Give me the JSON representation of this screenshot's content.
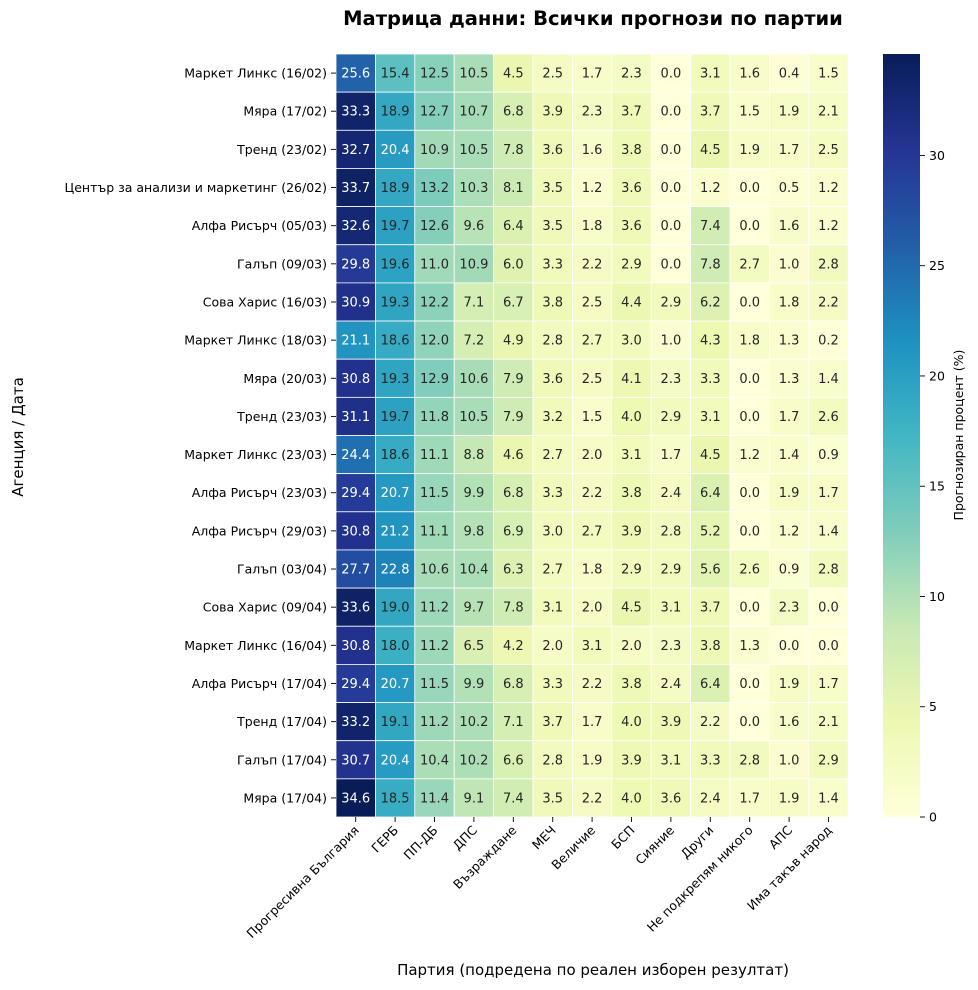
{
  "chart_data": {
    "type": "heatmap",
    "title": "Матрица данни: Всички прогнози по партии",
    "xlabel": "Партия (подредена по реален изборен резултат)",
    "ylabel": "Агенция / Дата",
    "colorbar_label": "Прогнозиран процент (%)",
    "colormap": "YlGnBu",
    "value_range": [
      0,
      34.6
    ],
    "colorbar_ticks": [
      "0",
      "5",
      "10",
      "15",
      "20",
      "25",
      "30"
    ],
    "columns": [
      "Прогресивна България",
      "ГЕРБ",
      "ПП-ДБ",
      "ДПС",
      "Възраждане",
      "МЕЧ",
      "Величие",
      "БСП",
      "Сияние",
      "Други",
      "Не подкрепям никого",
      "АПС",
      "Има такъв народ"
    ],
    "rows": [
      "Маркет Линкс (16/02)",
      "Мяра (17/02)",
      "Тренд (23/02)",
      "Център за анализи и маркетинг (26/02)",
      "Алфа Рисърч (05/03)",
      "Галъп (09/03)",
      "Сова Харис (16/03)",
      "Маркет Линкс (18/03)",
      "Мяра (20/03)",
      "Тренд (23/03)",
      "Маркет Линкс (23/03)",
      "Алфа Рисърч (23/03)",
      "Алфа Рисърч (29/03)",
      "Галъп (03/04)",
      "Сова Харис (09/04)",
      "Маркет Линкс (16/04)",
      "Алфа Рисърч (17/04)",
      "Тренд (17/04)",
      "Галъп (17/04)",
      "Мяра (17/04)"
    ],
    "values": [
      [
        "25.6",
        "15.4",
        "12.5",
        "10.5",
        "4.5",
        "2.5",
        "1.7",
        "2.3",
        "0.0",
        "3.1",
        "1.6",
        "0.4",
        "1.5"
      ],
      [
        "33.3",
        "18.9",
        "12.7",
        "10.7",
        "6.8",
        "3.9",
        "2.3",
        "3.7",
        "0.0",
        "3.7",
        "1.5",
        "1.9",
        "2.1"
      ],
      [
        "32.7",
        "20.4",
        "10.9",
        "10.5",
        "7.8",
        "3.6",
        "1.6",
        "3.8",
        "0.0",
        "4.5",
        "1.9",
        "1.7",
        "2.5"
      ],
      [
        "33.7",
        "18.9",
        "13.2",
        "10.3",
        "8.1",
        "3.5",
        "1.2",
        "3.6",
        "0.0",
        "1.2",
        "0.0",
        "0.5",
        "1.2"
      ],
      [
        "32.6",
        "19.7",
        "12.6",
        "9.6",
        "6.4",
        "3.5",
        "1.8",
        "3.6",
        "0.0",
        "7.4",
        "0.0",
        "1.6",
        "1.2"
      ],
      [
        "29.8",
        "19.6",
        "11.0",
        "10.9",
        "6.0",
        "3.3",
        "2.2",
        "2.9",
        "0.0",
        "7.8",
        "2.7",
        "1.0",
        "2.8"
      ],
      [
        "30.9",
        "19.3",
        "12.2",
        "7.1",
        "6.7",
        "3.8",
        "2.5",
        "4.4",
        "2.9",
        "6.2",
        "0.0",
        "1.8",
        "2.2"
      ],
      [
        "21.1",
        "18.6",
        "12.0",
        "7.2",
        "4.9",
        "2.8",
        "2.7",
        "3.0",
        "1.0",
        "4.3",
        "1.8",
        "1.3",
        "0.2"
      ],
      [
        "30.8",
        "19.3",
        "12.9",
        "10.6",
        "7.9",
        "3.6",
        "2.5",
        "4.1",
        "2.3",
        "3.3",
        "0.0",
        "1.3",
        "1.4"
      ],
      [
        "31.1",
        "19.7",
        "11.8",
        "10.5",
        "7.9",
        "3.2",
        "1.5",
        "4.0",
        "2.9",
        "3.1",
        "0.0",
        "1.7",
        "2.6"
      ],
      [
        "24.4",
        "18.6",
        "11.1",
        "8.8",
        "4.6",
        "2.7",
        "2.0",
        "3.1",
        "1.7",
        "4.5",
        "1.2",
        "1.4",
        "0.9"
      ],
      [
        "29.4",
        "20.7",
        "11.5",
        "9.9",
        "6.8",
        "3.3",
        "2.2",
        "3.8",
        "2.4",
        "6.4",
        "0.0",
        "1.9",
        "1.7"
      ],
      [
        "30.8",
        "21.2",
        "11.1",
        "9.8",
        "6.9",
        "3.0",
        "2.7",
        "3.9",
        "2.8",
        "5.2",
        "0.0",
        "1.2",
        "1.4"
      ],
      [
        "27.7",
        "22.8",
        "10.6",
        "10.4",
        "6.3",
        "2.7",
        "1.8",
        "2.9",
        "2.9",
        "5.6",
        "2.6",
        "0.9",
        "2.8"
      ],
      [
        "33.6",
        "19.0",
        "11.2",
        "9.7",
        "7.8",
        "3.1",
        "2.0",
        "4.5",
        "3.1",
        "3.7",
        "0.0",
        "2.3",
        "0.0"
      ],
      [
        "30.8",
        "18.0",
        "11.2",
        "6.5",
        "4.2",
        "2.0",
        "3.1",
        "2.0",
        "2.3",
        "3.8",
        "1.3",
        "0.0",
        "0.0"
      ],
      [
        "29.4",
        "20.7",
        "11.5",
        "9.9",
        "6.8",
        "3.3",
        "2.2",
        "3.8",
        "2.4",
        "6.4",
        "0.0",
        "1.9",
        "1.7"
      ],
      [
        "33.2",
        "19.1",
        "11.2",
        "10.2",
        "7.1",
        "3.7",
        "1.7",
        "4.0",
        "3.9",
        "2.2",
        "0.0",
        "1.6",
        "2.1"
      ],
      [
        "30.7",
        "20.4",
        "10.4",
        "10.2",
        "6.6",
        "2.8",
        "1.9",
        "3.9",
        "3.1",
        "3.3",
        "2.8",
        "1.0",
        "2.9"
      ],
      [
        "34.6",
        "18.5",
        "11.4",
        "9.1",
        "7.4",
        "3.5",
        "2.2",
        "4.0",
        "3.6",
        "2.4",
        "1.7",
        "1.9",
        "1.4"
      ]
    ]
  }
}
